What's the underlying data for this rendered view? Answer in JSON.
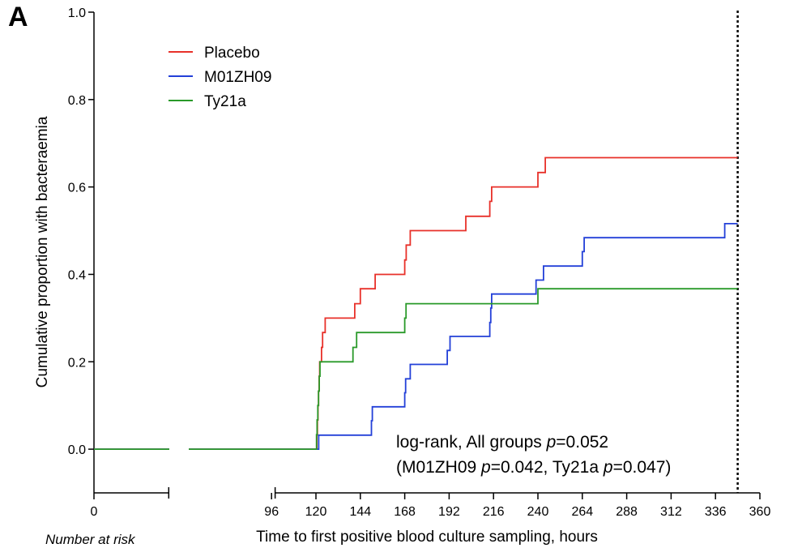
{
  "panel_label": "A",
  "footer_note": "Number at risk",
  "chart_data": {
    "type": "line",
    "step": true,
    "xlabel": "Time to first positive blood culture sampling, hours",
    "ylabel": "Cumulative proportion with bacteraemia",
    "xlim": [
      0,
      360
    ],
    "ylim": [
      -0.1,
      1.0
    ],
    "axis_break": [
      1,
      94
    ],
    "x_ticks": [
      0,
      96,
      120,
      144,
      168,
      192,
      216,
      240,
      264,
      288,
      312,
      336,
      360
    ],
    "x_tick_labels": [
      "0",
      "96",
      "120",
      "144",
      "168",
      "192",
      "216",
      "240",
      "264",
      "288",
      "312",
      "336",
      "360"
    ],
    "y_ticks": [
      0.0,
      0.2,
      0.4,
      0.6,
      0.8,
      1.0
    ],
    "y_tick_labels": [
      "0.0",
      "0.2",
      "0.4",
      "0.6",
      "0.8",
      "1.0"
    ],
    "reference_line_x": 348,
    "legend_position": "top-left",
    "series": [
      {
        "name": "Placebo",
        "color": "#e8312a",
        "x": [
          0,
          120.5,
          120.8,
          121.1,
          121.4,
          121.7,
          122,
          122.4,
          123,
          123.6,
          124.2,
          125,
          126,
          141,
          142.5,
          144,
          152,
          168,
          168.8,
          169.5,
          171,
          201,
          214,
          215,
          216,
          240,
          244,
          348
        ],
        "y": [
          0,
          0.033,
          0.067,
          0.1,
          0.133,
          0.167,
          0.2,
          0.2,
          0.233,
          0.267,
          0.267,
          0.3,
          0.3,
          0.333,
          0.333,
          0.367,
          0.4,
          0.433,
          0.467,
          0.467,
          0.5,
          0.533,
          0.567,
          0.6,
          0.6,
          0.633,
          0.667,
          0.667
        ]
      },
      {
        "name": "M01ZH09",
        "color": "#2340d8",
        "x": [
          0,
          121.5,
          150,
          150.5,
          168,
          168.5,
          169.5,
          171,
          191,
          192.5,
          214,
          214.5,
          215,
          239,
          243,
          264,
          265,
          341,
          348
        ],
        "y": [
          0,
          0.032,
          0.065,
          0.097,
          0.129,
          0.161,
          0.161,
          0.194,
          0.226,
          0.258,
          0.29,
          0.323,
          0.355,
          0.387,
          0.419,
          0.452,
          0.484,
          0.516,
          0.516
        ]
      },
      {
        "name": "Ty21a",
        "color": "#2a9a2a",
        "x": [
          0,
          120.3,
          120.6,
          121,
          121.4,
          121.8,
          122.2,
          140,
          142,
          168,
          168.7,
          240,
          348
        ],
        "y": [
          0,
          0.033,
          0.067,
          0.1,
          0.133,
          0.167,
          0.2,
          0.233,
          0.267,
          0.3,
          0.333,
          0.367,
          0.367
        ]
      }
    ],
    "annotations": [
      {
        "segments": [
          {
            "text": "log-rank, All groups ",
            "italic": false
          },
          {
            "text": "p",
            "italic": true
          },
          {
            "text": "=0.052",
            "italic": false
          }
        ]
      },
      {
        "segments": [
          {
            "text": "(M01ZH09 ",
            "italic": false
          },
          {
            "text": "p",
            "italic": true
          },
          {
            "text": "=0.042, Ty21a ",
            "italic": false
          },
          {
            "text": "p",
            "italic": true
          },
          {
            "text": "=0.047)",
            "italic": false
          }
        ]
      }
    ]
  }
}
